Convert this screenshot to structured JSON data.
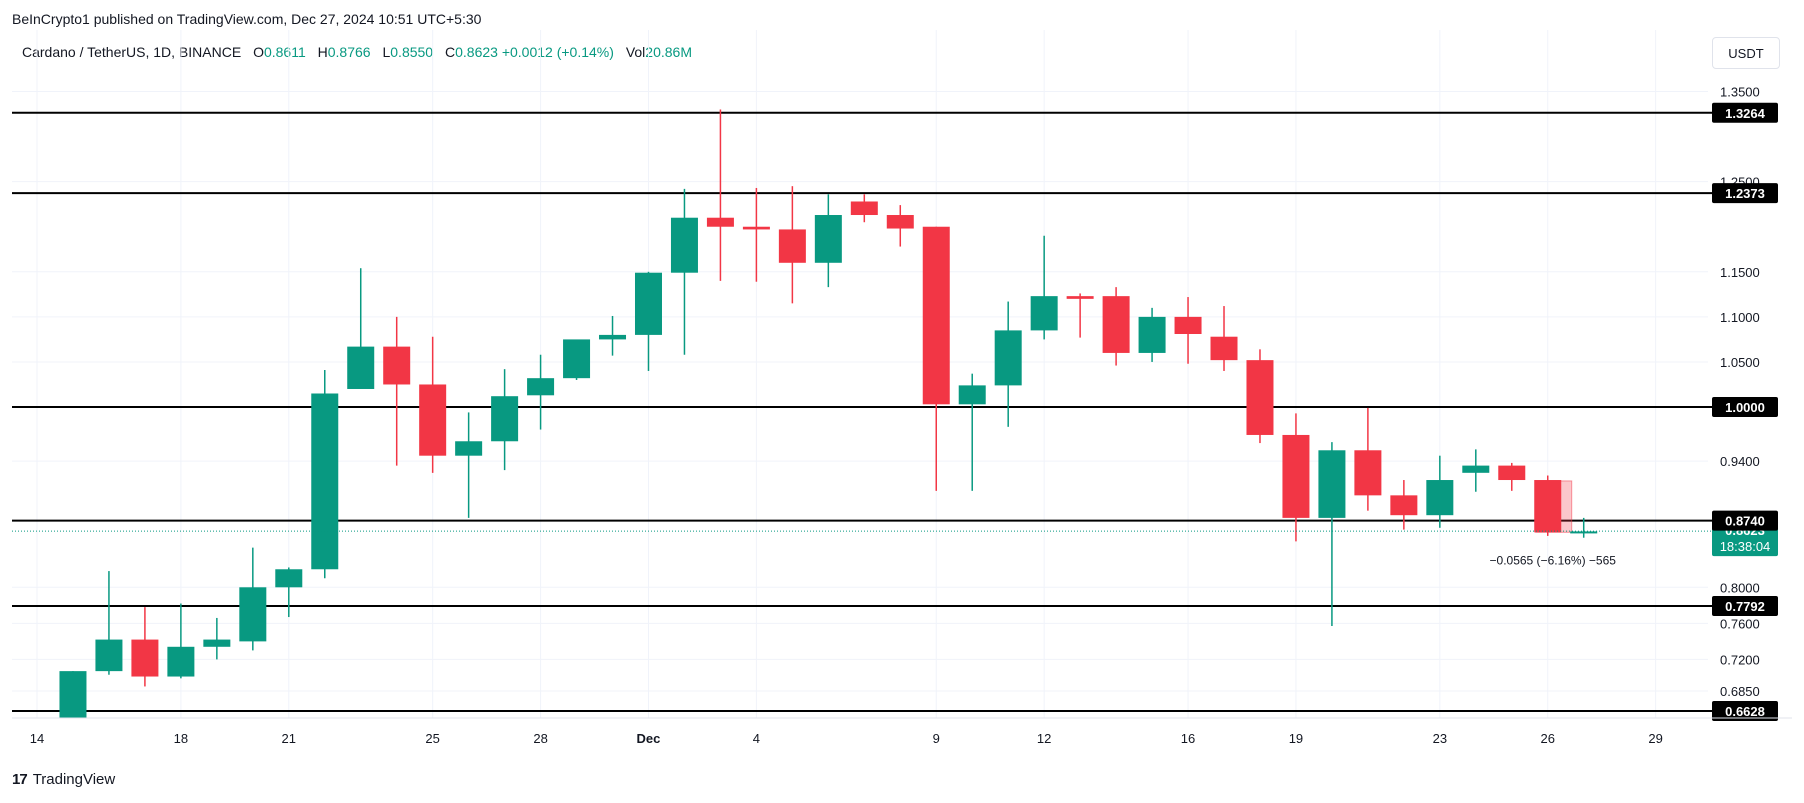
{
  "header": {
    "published_by": "BeInCrypto1 published on TradingView.com, Dec 27, 2024 10:51 UTC+5:30"
  },
  "legend": {
    "symbol": "Cardano / TetherUS, 1D, BINANCE",
    "o_label": "O",
    "o_value": "0.8611",
    "h_label": "H",
    "h_value": "0.8766",
    "l_label": "L",
    "l_value": "0.8550",
    "c_label": "C",
    "c_value": "0.8623",
    "change": "+0.0012 (+0.14%)",
    "vol_label": "Vol",
    "vol_value": "20.86M"
  },
  "currency_button": "USDT",
  "footer": {
    "brand": "TradingView",
    "logo": "17"
  },
  "colors": {
    "up": "#089981",
    "down": "#F23645",
    "grid": "#f0f3fa",
    "level": "#000000"
  },
  "chart_data": {
    "type": "candlestick",
    "title": "Cardano / TetherUS, 1D, BINANCE",
    "ylim": [
      0.655,
      1.365
    ],
    "y_ticks": [
      "1.3500",
      "1.2500",
      "1.1500",
      "1.1000",
      "1.0500",
      "0.9400",
      "0.8000",
      "0.7600",
      "0.7200",
      "0.6850"
    ],
    "x_ticks": [
      {
        "day": 14,
        "label": "14"
      },
      {
        "day": 18,
        "label": "18"
      },
      {
        "day": 21,
        "label": "21"
      },
      {
        "day": 25,
        "label": "25"
      },
      {
        "day": 28,
        "label": "28"
      },
      {
        "day": 31,
        "label": "Dec"
      },
      {
        "day": 34,
        "label": "4"
      },
      {
        "day": 39,
        "label": "9"
      },
      {
        "day": 42,
        "label": "12"
      },
      {
        "day": 46,
        "label": "16"
      },
      {
        "day": 49,
        "label": "19"
      },
      {
        "day": 53,
        "label": "23"
      },
      {
        "day": 56,
        "label": "26"
      },
      {
        "day": 59,
        "label": "29"
      }
    ],
    "candles": [
      {
        "d": 15,
        "o": 0.655,
        "h": 0.707,
        "l": 0.655,
        "c": 0.707
      },
      {
        "d": 16,
        "o": 0.707,
        "h": 0.818,
        "l": 0.703,
        "c": 0.742
      },
      {
        "d": 17,
        "o": 0.742,
        "h": 0.778,
        "l": 0.69,
        "c": 0.701
      },
      {
        "d": 18,
        "o": 0.701,
        "h": 0.782,
        "l": 0.699,
        "c": 0.734
      },
      {
        "d": 19,
        "o": 0.734,
        "h": 0.766,
        "l": 0.72,
        "c": 0.742
      },
      {
        "d": 20,
        "o": 0.74,
        "h": 0.844,
        "l": 0.73,
        "c": 0.8
      },
      {
        "d": 21,
        "o": 0.8,
        "h": 0.822,
        "l": 0.767,
        "c": 0.82
      },
      {
        "d": 22,
        "o": 0.82,
        "h": 1.041,
        "l": 0.81,
        "c": 1.015
      },
      {
        "d": 23,
        "o": 1.02,
        "h": 1.154,
        "l": 1.02,
        "c": 1.067
      },
      {
        "d": 24,
        "o": 1.067,
        "h": 1.1,
        "l": 0.935,
        "c": 1.025
      },
      {
        "d": 25,
        "o": 1.025,
        "h": 1.078,
        "l": 0.927,
        "c": 0.946
      },
      {
        "d": 26,
        "o": 0.946,
        "h": 0.994,
        "l": 0.877,
        "c": 0.962
      },
      {
        "d": 27,
        "o": 0.962,
        "h": 1.042,
        "l": 0.93,
        "c": 1.012
      },
      {
        "d": 28,
        "o": 1.013,
        "h": 1.058,
        "l": 0.975,
        "c": 1.032
      },
      {
        "d": 29,
        "o": 1.032,
        "h": 1.072,
        "l": 1.03,
        "c": 1.075
      },
      {
        "d": 30,
        "o": 1.075,
        "h": 1.101,
        "l": 1.057,
        "c": 1.08
      },
      {
        "d": 31,
        "o": 1.08,
        "h": 1.15,
        "l": 1.04,
        "c": 1.149
      },
      {
        "d": 32,
        "o": 1.149,
        "h": 1.242,
        "l": 1.058,
        "c": 1.21
      },
      {
        "d": 33,
        "o": 1.21,
        "h": 1.33,
        "l": 1.14,
        "c": 1.2
      },
      {
        "d": 34,
        "o": 1.2,
        "h": 1.243,
        "l": 1.139,
        "c": 1.197
      },
      {
        "d": 35,
        "o": 1.197,
        "h": 1.245,
        "l": 1.115,
        "c": 1.16
      },
      {
        "d": 36,
        "o": 1.16,
        "h": 1.236,
        "l": 1.133,
        "c": 1.213
      },
      {
        "d": 37,
        "o": 1.228,
        "h": 1.236,
        "l": 1.205,
        "c": 1.213
      },
      {
        "d": 38,
        "o": 1.213,
        "h": 1.224,
        "l": 1.178,
        "c": 1.198
      },
      {
        "d": 39,
        "o": 1.2,
        "h": 1.2,
        "l": 0.907,
        "c": 1.003
      },
      {
        "d": 40,
        "o": 1.003,
        "h": 1.037,
        "l": 0.907,
        "c": 1.024
      },
      {
        "d": 41,
        "o": 1.024,
        "h": 1.117,
        "l": 0.978,
        "c": 1.085
      },
      {
        "d": 42,
        "o": 1.085,
        "h": 1.19,
        "l": 1.075,
        "c": 1.123
      },
      {
        "d": 43,
        "o": 1.123,
        "h": 1.126,
        "l": 1.077,
        "c": 1.12
      },
      {
        "d": 44,
        "o": 1.123,
        "h": 1.133,
        "l": 1.046,
        "c": 1.06
      },
      {
        "d": 45,
        "o": 1.06,
        "h": 1.11,
        "l": 1.05,
        "c": 1.1
      },
      {
        "d": 46,
        "o": 1.1,
        "h": 1.122,
        "l": 1.048,
        "c": 1.081
      },
      {
        "d": 47,
        "o": 1.078,
        "h": 1.112,
        "l": 1.04,
        "c": 1.052
      },
      {
        "d": 48,
        "o": 1.052,
        "h": 1.064,
        "l": 0.96,
        "c": 0.969
      },
      {
        "d": 49,
        "o": 0.969,
        "h": 0.993,
        "l": 0.851,
        "c": 0.877
      },
      {
        "d": 50,
        "o": 0.877,
        "h": 0.961,
        "l": 0.757,
        "c": 0.952
      },
      {
        "d": 51,
        "o": 0.952,
        "h": 0.999,
        "l": 0.885,
        "c": 0.902
      },
      {
        "d": 52,
        "o": 0.902,
        "h": 0.919,
        "l": 0.864,
        "c": 0.88
      },
      {
        "d": 53,
        "o": 0.88,
        "h": 0.946,
        "l": 0.866,
        "c": 0.919
      },
      {
        "d": 54,
        "o": 0.927,
        "h": 0.953,
        "l": 0.906,
        "c": 0.935
      },
      {
        "d": 55,
        "o": 0.935,
        "h": 0.938,
        "l": 0.907,
        "c": 0.919
      },
      {
        "d": 56,
        "o": 0.919,
        "h": 0.924,
        "l": 0.857,
        "c": 0.861
      },
      {
        "d": 57,
        "o": 0.861,
        "h": 0.877,
        "l": 0.855,
        "c": 0.862
      }
    ],
    "levels": [
      {
        "value": 1.3264,
        "label": "1.3264"
      },
      {
        "value": 1.2373,
        "label": "1.2373"
      },
      {
        "value": 1.0,
        "label": "1.0000"
      },
      {
        "value": 0.874,
        "label": "0.8740"
      },
      {
        "value": 0.7792,
        "label": "0.7792"
      },
      {
        "value": 0.6628,
        "label": "0.6628"
      }
    ],
    "current_price": {
      "value": 0.8623,
      "label": "0.8623",
      "countdown": "18:38:04"
    },
    "measure": {
      "from_day": 56,
      "to_day": 57,
      "top": 0.918,
      "bottom": 0.861,
      "label": "−0.0565 (−6.16%) −565"
    }
  }
}
